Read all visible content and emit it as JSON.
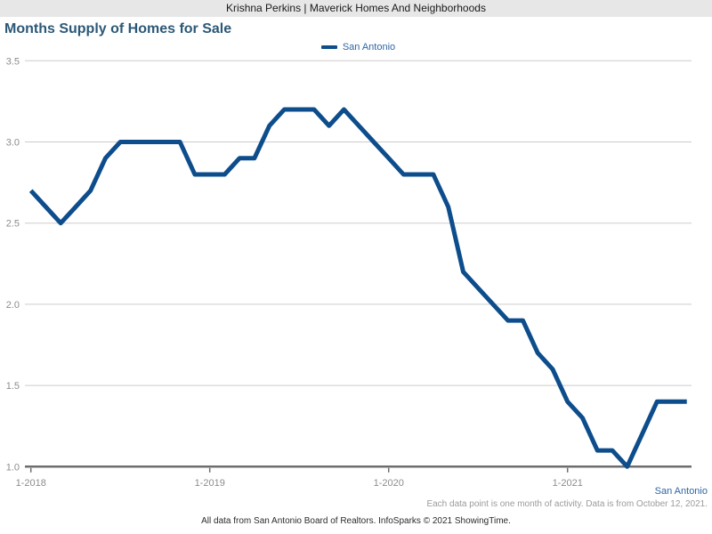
{
  "header": {
    "branding": "Krishna Perkins | Maverick Homes And Neighborhoods"
  },
  "chart": {
    "title": "Months Supply of Homes for Sale",
    "legend": [
      "San Antonio"
    ]
  },
  "chart_data": {
    "type": "line",
    "title": "Months Supply of Homes for Sale",
    "categories": [
      "1-2018",
      "2-2018",
      "3-2018",
      "4-2018",
      "5-2018",
      "6-2018",
      "7-2018",
      "8-2018",
      "9-2018",
      "10-2018",
      "11-2018",
      "12-2018",
      "1-2019",
      "2-2019",
      "3-2019",
      "4-2019",
      "5-2019",
      "6-2019",
      "7-2019",
      "8-2019",
      "9-2019",
      "10-2019",
      "11-2019",
      "12-2019",
      "1-2020",
      "2-2020",
      "3-2020",
      "4-2020",
      "5-2020",
      "6-2020",
      "7-2020",
      "8-2020",
      "9-2020",
      "10-2020",
      "11-2020",
      "12-2020",
      "1-2021",
      "2-2021",
      "3-2021",
      "4-2021",
      "5-2021",
      "6-2021",
      "7-2021",
      "8-2021",
      "9-2021"
    ],
    "series": [
      {
        "name": "San Antonio",
        "values": [
          2.7,
          2.6,
          2.5,
          2.6,
          2.7,
          2.9,
          3.0,
          3.0,
          3.0,
          3.0,
          3.0,
          2.8,
          2.8,
          2.8,
          2.9,
          2.9,
          3.1,
          3.2,
          3.2,
          3.2,
          3.1,
          3.2,
          3.1,
          3.0,
          2.9,
          2.8,
          2.8,
          2.8,
          2.6,
          2.2,
          2.1,
          2.0,
          1.9,
          1.9,
          1.7,
          1.6,
          1.4,
          1.3,
          1.1,
          1.1,
          1.0,
          1.2,
          1.4,
          1.4,
          1.4
        ]
      }
    ],
    "x_tick_labels": [
      "1-2018",
      "1-2019",
      "1-2020",
      "1-2021"
    ],
    "y_tick_labels": [
      "1.0",
      "1.5",
      "2.0",
      "2.5",
      "3.0",
      "3.5"
    ],
    "ylim": [
      1.0,
      3.5
    ],
    "grid": "horizontal",
    "legend_position": "top-center"
  },
  "footer": {
    "series_label": "San Antonio",
    "note": "Each data point is one month of activity. Data is from October 12, 2021.",
    "attribution": "All data from San Antonio Board of Realtors. InfoSparks © 2021 ShowingTime."
  },
  "colors": {
    "line": "#0d4d8c",
    "title": "#2b5877",
    "legend_text": "#2e66a6",
    "axis_label": "#8c8c8c",
    "gridline": "#cccccc",
    "axis_line": "#6e6e6e",
    "header_bg": "#e7e7e7",
    "note_text": "#9b9b9b"
  }
}
